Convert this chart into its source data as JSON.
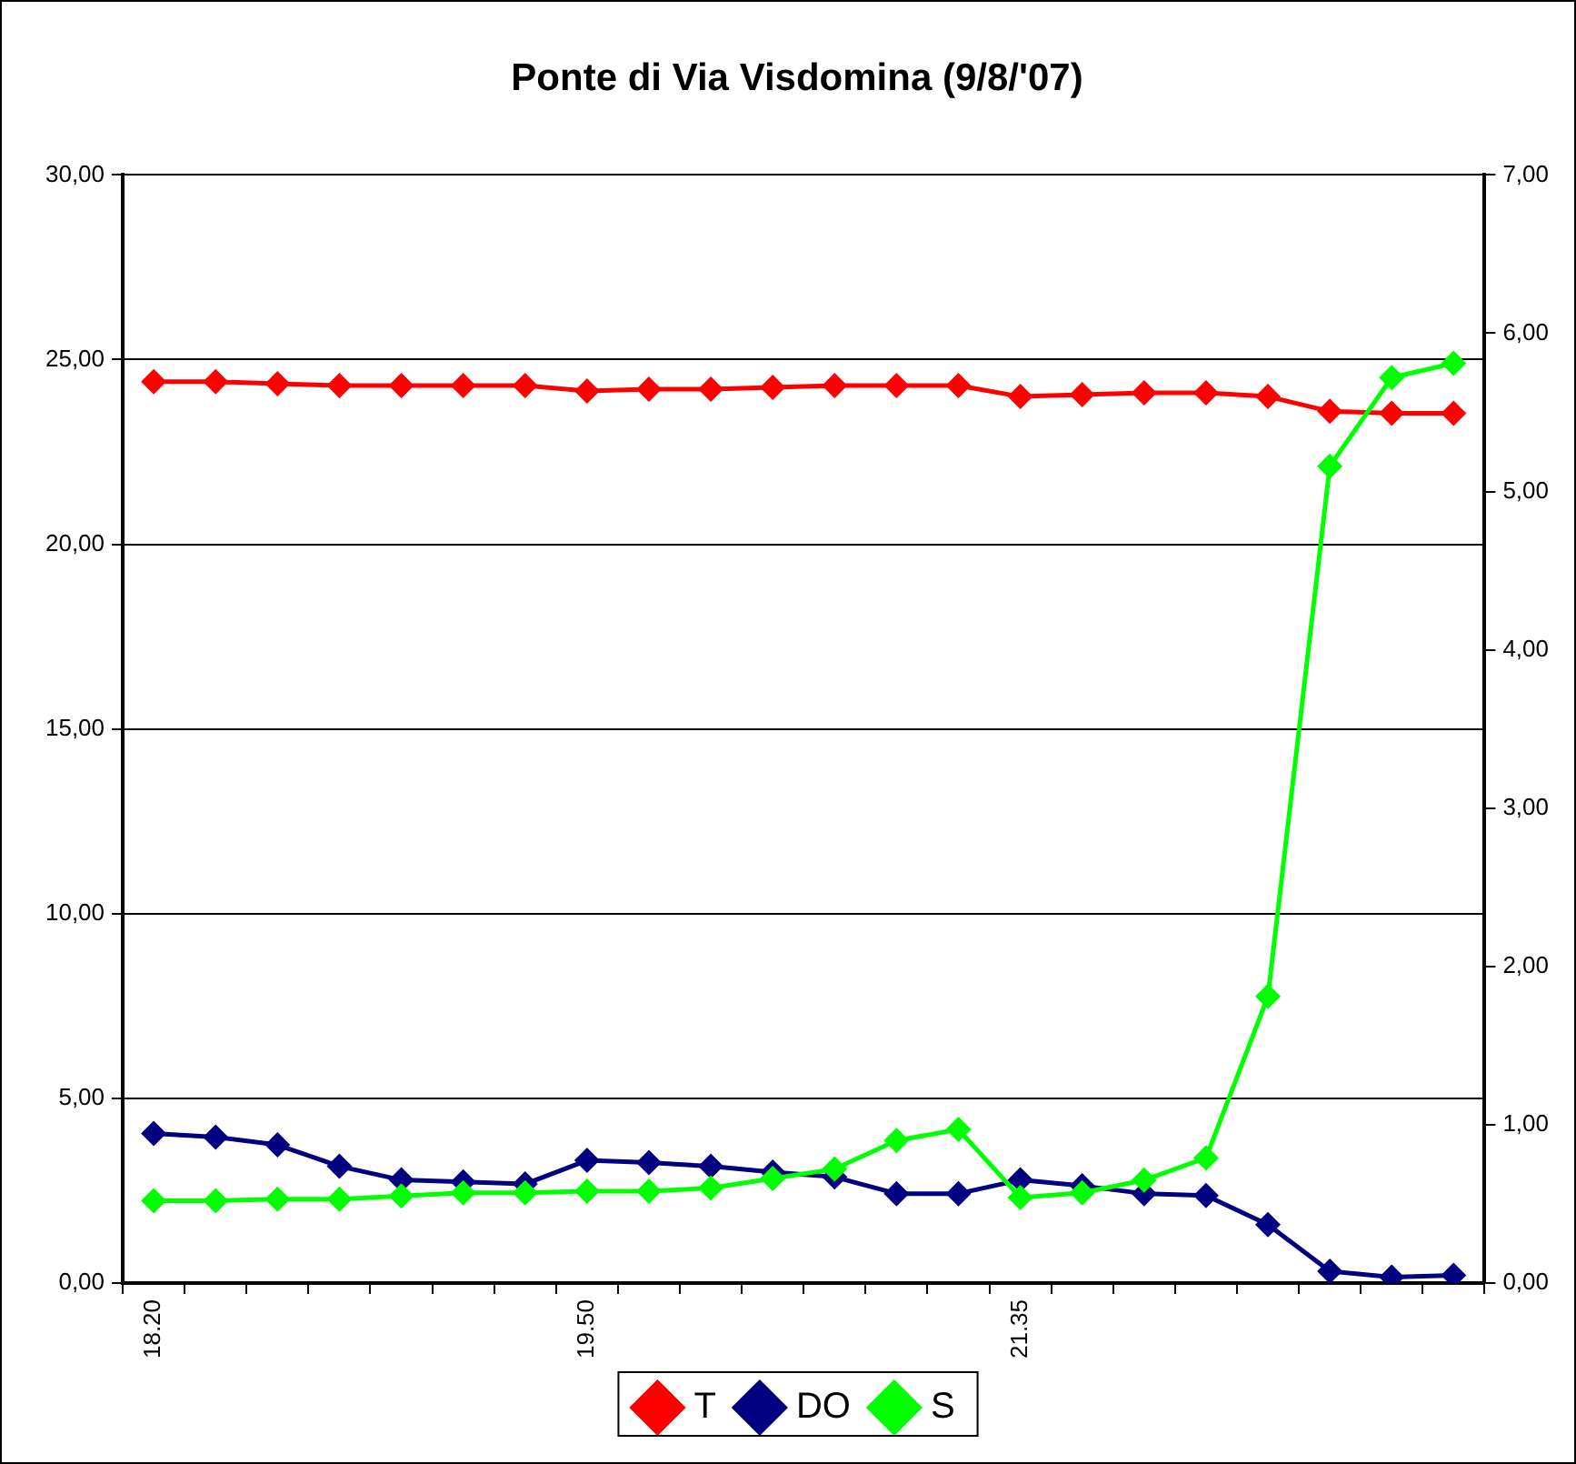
{
  "chart_data": {
    "type": "line",
    "title": "Ponte di Via Visdomina (9/8/'07)",
    "categories": [
      "18.20",
      null,
      null,
      null,
      null,
      null,
      null,
      "19.50",
      null,
      null,
      null,
      null,
      null,
      null,
      "21.35",
      null,
      null,
      null,
      null,
      null,
      null,
      null
    ],
    "series": [
      {
        "name": "T",
        "color": "#ff0000",
        "values": [
          24.4,
          24.4,
          24.35,
          24.3,
          24.3,
          24.3,
          24.3,
          24.15,
          24.2,
          24.2,
          24.25,
          24.3,
          24.3,
          24.3,
          24.0,
          24.05,
          24.1,
          24.1,
          24.0,
          23.6,
          23.55,
          23.55
        ]
      },
      {
        "name": "DO",
        "color": "#000080",
        "values": [
          4.05,
          3.95,
          3.74,
          3.16,
          2.79,
          2.74,
          2.68,
          3.32,
          3.26,
          3.16,
          3.0,
          2.87,
          2.42,
          2.42,
          2.79,
          2.63,
          2.42,
          2.37,
          1.58,
          0.32,
          0.16,
          0.21
        ]
      },
      {
        "name": "S",
        "color": "#00ff00",
        "axis": "y2",
        "values": [
          0.52,
          0.52,
          0.53,
          0.53,
          0.55,
          0.57,
          0.57,
          0.58,
          0.58,
          0.6,
          0.66,
          0.72,
          0.9,
          0.97,
          0.54,
          0.57,
          0.65,
          0.79,
          1.81,
          5.16,
          5.72,
          5.81
        ]
      }
    ],
    "ylim": [
      0,
      30
    ],
    "yticks": [
      {
        "value": 0,
        "label": "0,00"
      },
      {
        "value": 5,
        "label": "5,00"
      },
      {
        "value": 10,
        "label": "10,00"
      },
      {
        "value": 15,
        "label": "15,00"
      },
      {
        "value": 20,
        "label": "20,00"
      },
      {
        "value": 25,
        "label": "25,00"
      },
      {
        "value": 30,
        "label": "30,00"
      }
    ],
    "y2lim": [
      0,
      7
    ],
    "y2ticks": [
      {
        "value": 0,
        "label": "0,00"
      },
      {
        "value": 1,
        "label": "1,00"
      },
      {
        "value": 2,
        "label": "2,00"
      },
      {
        "value": 3,
        "label": "3,00"
      },
      {
        "value": 4,
        "label": "4,00"
      },
      {
        "value": 5,
        "label": "5,00"
      },
      {
        "value": 6,
        "label": "6,00"
      },
      {
        "value": 7,
        "label": "7,00"
      }
    ],
    "grid": "y",
    "legend": "bottom",
    "marker": "diamond",
    "line_style": "solid"
  }
}
